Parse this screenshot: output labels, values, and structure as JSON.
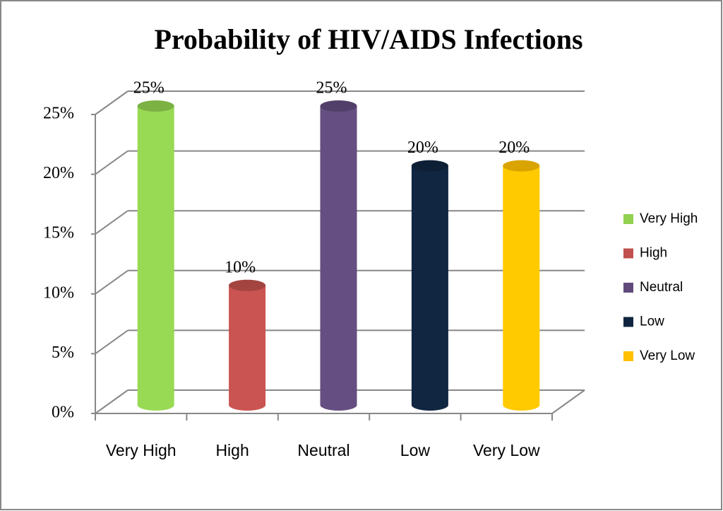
{
  "chart_data": {
    "type": "bar3d",
    "title": "Probability of HIV/AIDS Infections",
    "categories": [
      "Very High",
      "High",
      "Neutral",
      "Low",
      "Very Low"
    ],
    "values": [
      25,
      10,
      25,
      20,
      20
    ],
    "value_labels": [
      "25%",
      "10%",
      "25%",
      "20%",
      "20%"
    ],
    "colors": [
      "#92d050",
      "#c0504d",
      "#604a7b",
      "#0f243e",
      "#ffc000"
    ],
    "ylim": [
      0,
      25
    ],
    "yticks": [
      {
        "value": 0,
        "label": "0%"
      },
      {
        "value": 5,
        "label": "5%"
      },
      {
        "value": 10,
        "label": "10%"
      },
      {
        "value": 15,
        "label": "15%"
      },
      {
        "value": 20,
        "label": "20%"
      },
      {
        "value": 25,
        "label": "25%"
      }
    ],
    "grid": true,
    "legend": "right"
  }
}
